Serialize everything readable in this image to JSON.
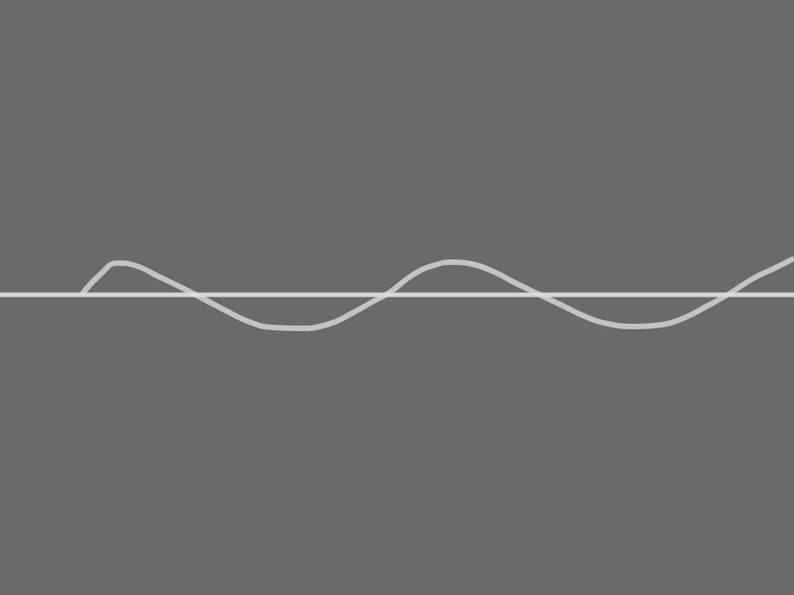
{
  "chart_data": {
    "type": "line",
    "x": [
      0,
      45,
      90,
      110,
      130,
      150,
      175,
      200,
      225,
      250,
      275,
      300,
      330,
      360,
      385,
      410,
      430,
      455,
      480,
      500,
      520,
      545,
      570,
      595,
      620,
      645,
      670,
      700,
      730,
      755,
      780,
      805,
      830,
      855,
      875
    ],
    "series": [
      {
        "color": "#dcdcdc",
        "values": [
          0,
          0,
          0,
          0,
          0,
          0,
          0,
          0,
          0,
          0,
          0,
          0,
          0,
          0,
          0,
          0,
          0,
          0,
          0,
          0,
          0,
          0,
          0,
          0,
          0,
          0,
          0,
          0,
          0,
          0,
          0,
          0,
          0,
          0,
          0
        ]
      },
      {
        "color": "#d2d2d2",
        "values": [
          null,
          null,
          0,
          22,
          35,
          32,
          20,
          8,
          -5,
          -18,
          -30,
          -36,
          -37,
          -33,
          -22,
          -8,
          3,
          22,
          33,
          36,
          34,
          25,
          12,
          0,
          -12,
          -24,
          -32,
          -35,
          -33,
          -25,
          -12,
          2,
          18,
          30,
          40
        ]
      }
    ],
    "xlim": [
      0,
      875
    ],
    "ylim": [
      -331,
      325
    ],
    "tick_labels": false,
    "grid": false
  }
}
